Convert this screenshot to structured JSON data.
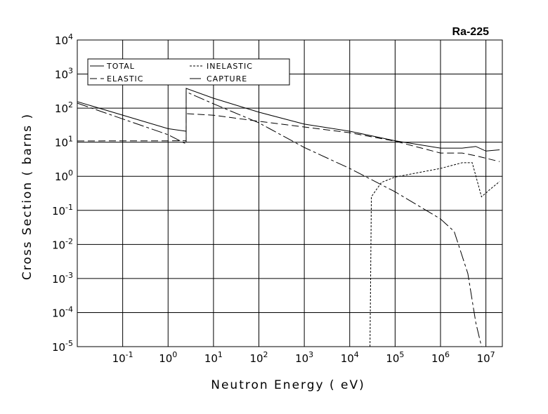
{
  "chart_data": {
    "type": "line",
    "title": "Ra-225",
    "x_label": "Neutron Energy ( eV)",
    "y_label": "Cross Section ( barns )",
    "xscale": "log",
    "yscale": "log",
    "grid": true,
    "xlim": [
      0.01,
      23000000
    ],
    "ylim": [
      1e-05,
      10000
    ],
    "xticks": [
      {
        "value": 0.1,
        "label": "10^-1"
      },
      {
        "value": 1,
        "label": "10^0"
      },
      {
        "value": 10,
        "label": "10^1"
      },
      {
        "value": 100,
        "label": "10^2"
      },
      {
        "value": 1000,
        "label": "10^3"
      },
      {
        "value": 10000,
        "label": "10^4"
      },
      {
        "value": 100000,
        "label": "10^5"
      },
      {
        "value": 1000000,
        "label": "10^6"
      },
      {
        "value": 10000000,
        "label": "10^7"
      }
    ],
    "yticks": [
      {
        "value": 1e-05,
        "label": "10^-5"
      },
      {
        "value": 0.0001,
        "label": "10^-4"
      },
      {
        "value": 0.001,
        "label": "10^-3"
      },
      {
        "value": 0.01,
        "label": "10^-2"
      },
      {
        "value": 0.1,
        "label": "10^-1"
      },
      {
        "value": 1,
        "label": "10^0"
      },
      {
        "value": 10,
        "label": "10^1"
      },
      {
        "value": 100,
        "label": "10^2"
      },
      {
        "value": 1000,
        "label": "10^3"
      },
      {
        "value": 10000,
        "label": "10^4"
      }
    ],
    "series": [
      {
        "name": "TOTAL",
        "color": "#000000",
        "dash": "solid",
        "x": [
          0.01,
          1,
          2.5,
          2.5,
          10,
          100,
          1000,
          10000,
          100000,
          1000000,
          3000000,
          6000000,
          10000000,
          20000000
        ],
        "values": [
          155,
          25,
          21,
          380,
          195,
          76,
          34,
          21,
          11,
          6.7,
          6.7,
          7.5,
          5.5,
          6
        ]
      },
      {
        "name": "INELASTIC",
        "color": "#000000",
        "dash": "dotted",
        "x": [
          28000,
          30000,
          50000,
          100000,
          1000000,
          3000000,
          5000000,
          8000000,
          12000000,
          20000000
        ],
        "values": [
          1e-05,
          0.25,
          0.66,
          0.95,
          1.7,
          2.5,
          2.5,
          0.25,
          0.4,
          0.7
        ]
      },
      {
        "name": "ELASTIC",
        "color": "#000000",
        "dash": "dashed",
        "x": [
          0.01,
          2.5,
          2.5,
          10,
          100,
          1000,
          10000,
          100000,
          1000000,
          3000000,
          6000000,
          20000000
        ],
        "values": [
          10.9,
          11,
          69,
          62,
          41,
          28,
          19,
          10.7,
          4.8,
          4.8,
          4,
          2.7
        ]
      },
      {
        "name": "CAPTURE",
        "color": "#000000",
        "dash": "dashdot",
        "x": [
          0.01,
          1,
          2.5,
          2.5,
          10,
          100,
          1000,
          10000,
          30000,
          100000,
          1000000,
          2000000,
          4000000,
          6000000,
          8000000
        ],
        "values": [
          140,
          16.6,
          8.9,
          300,
          134,
          37,
          7,
          1.7,
          0.8,
          0.35,
          0.056,
          0.024,
          0.0014,
          5e-05,
          1e-05
        ]
      }
    ]
  }
}
